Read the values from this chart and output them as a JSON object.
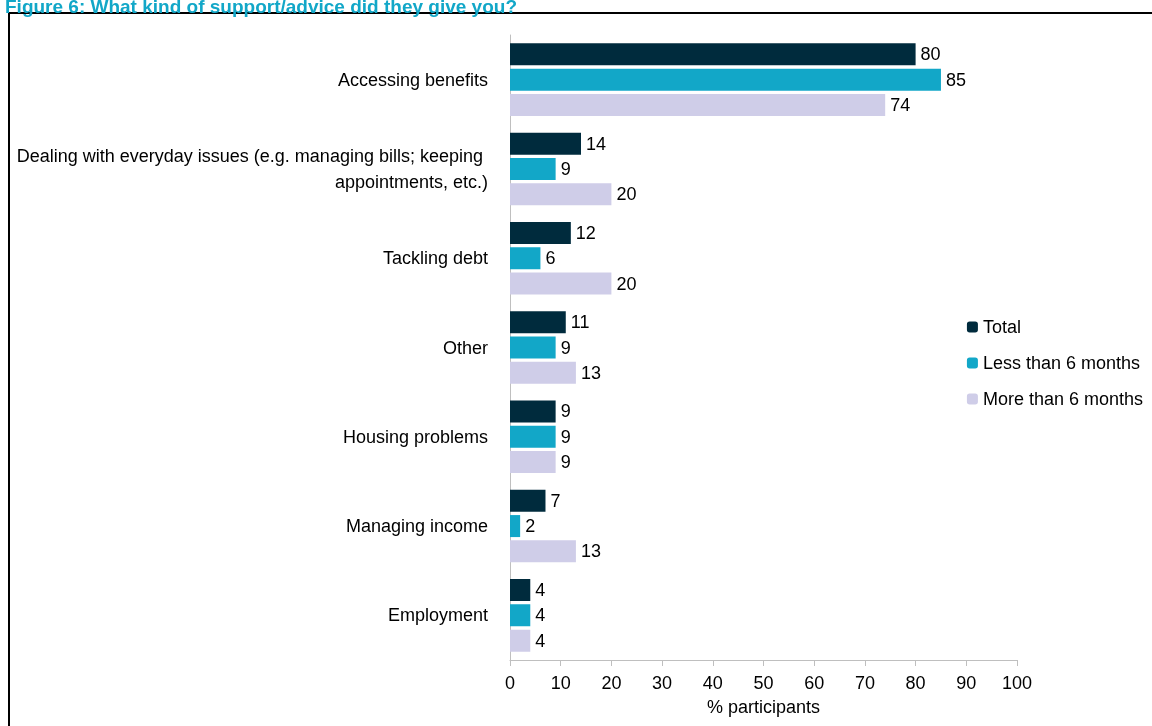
{
  "chart_data": {
    "type": "bar",
    "orientation": "horizontal",
    "title": "Figure 6: What kind of support/advice did they give you?",
    "xlabel": "% participants",
    "categories": [
      "Accessing benefits",
      "Dealing with everyday issues (e.g. managing bills; keeping appointments, etc.)",
      "Tackling debt",
      "Other",
      "Housing problems",
      "Managing income",
      "Employment"
    ],
    "series": [
      {
        "name": "Total",
        "color": "#002b3d",
        "values": [
          80,
          14,
          12,
          11,
          9,
          7,
          4
        ]
      },
      {
        "name": "Less than 6 months",
        "color": "#12a7c8",
        "values": [
          85,
          9,
          6,
          9,
          9,
          2,
          4
        ]
      },
      {
        "name": "More than 6 months",
        "color": "#cfcde8",
        "values": [
          74,
          20,
          20,
          13,
          9,
          13,
          4
        ]
      }
    ],
    "xlim": [
      0,
      100
    ],
    "xticks": [
      0,
      10,
      20,
      30,
      40,
      50,
      60,
      70,
      80,
      90,
      100
    ],
    "data_labels": true,
    "grid": false,
    "legend": "right"
  }
}
